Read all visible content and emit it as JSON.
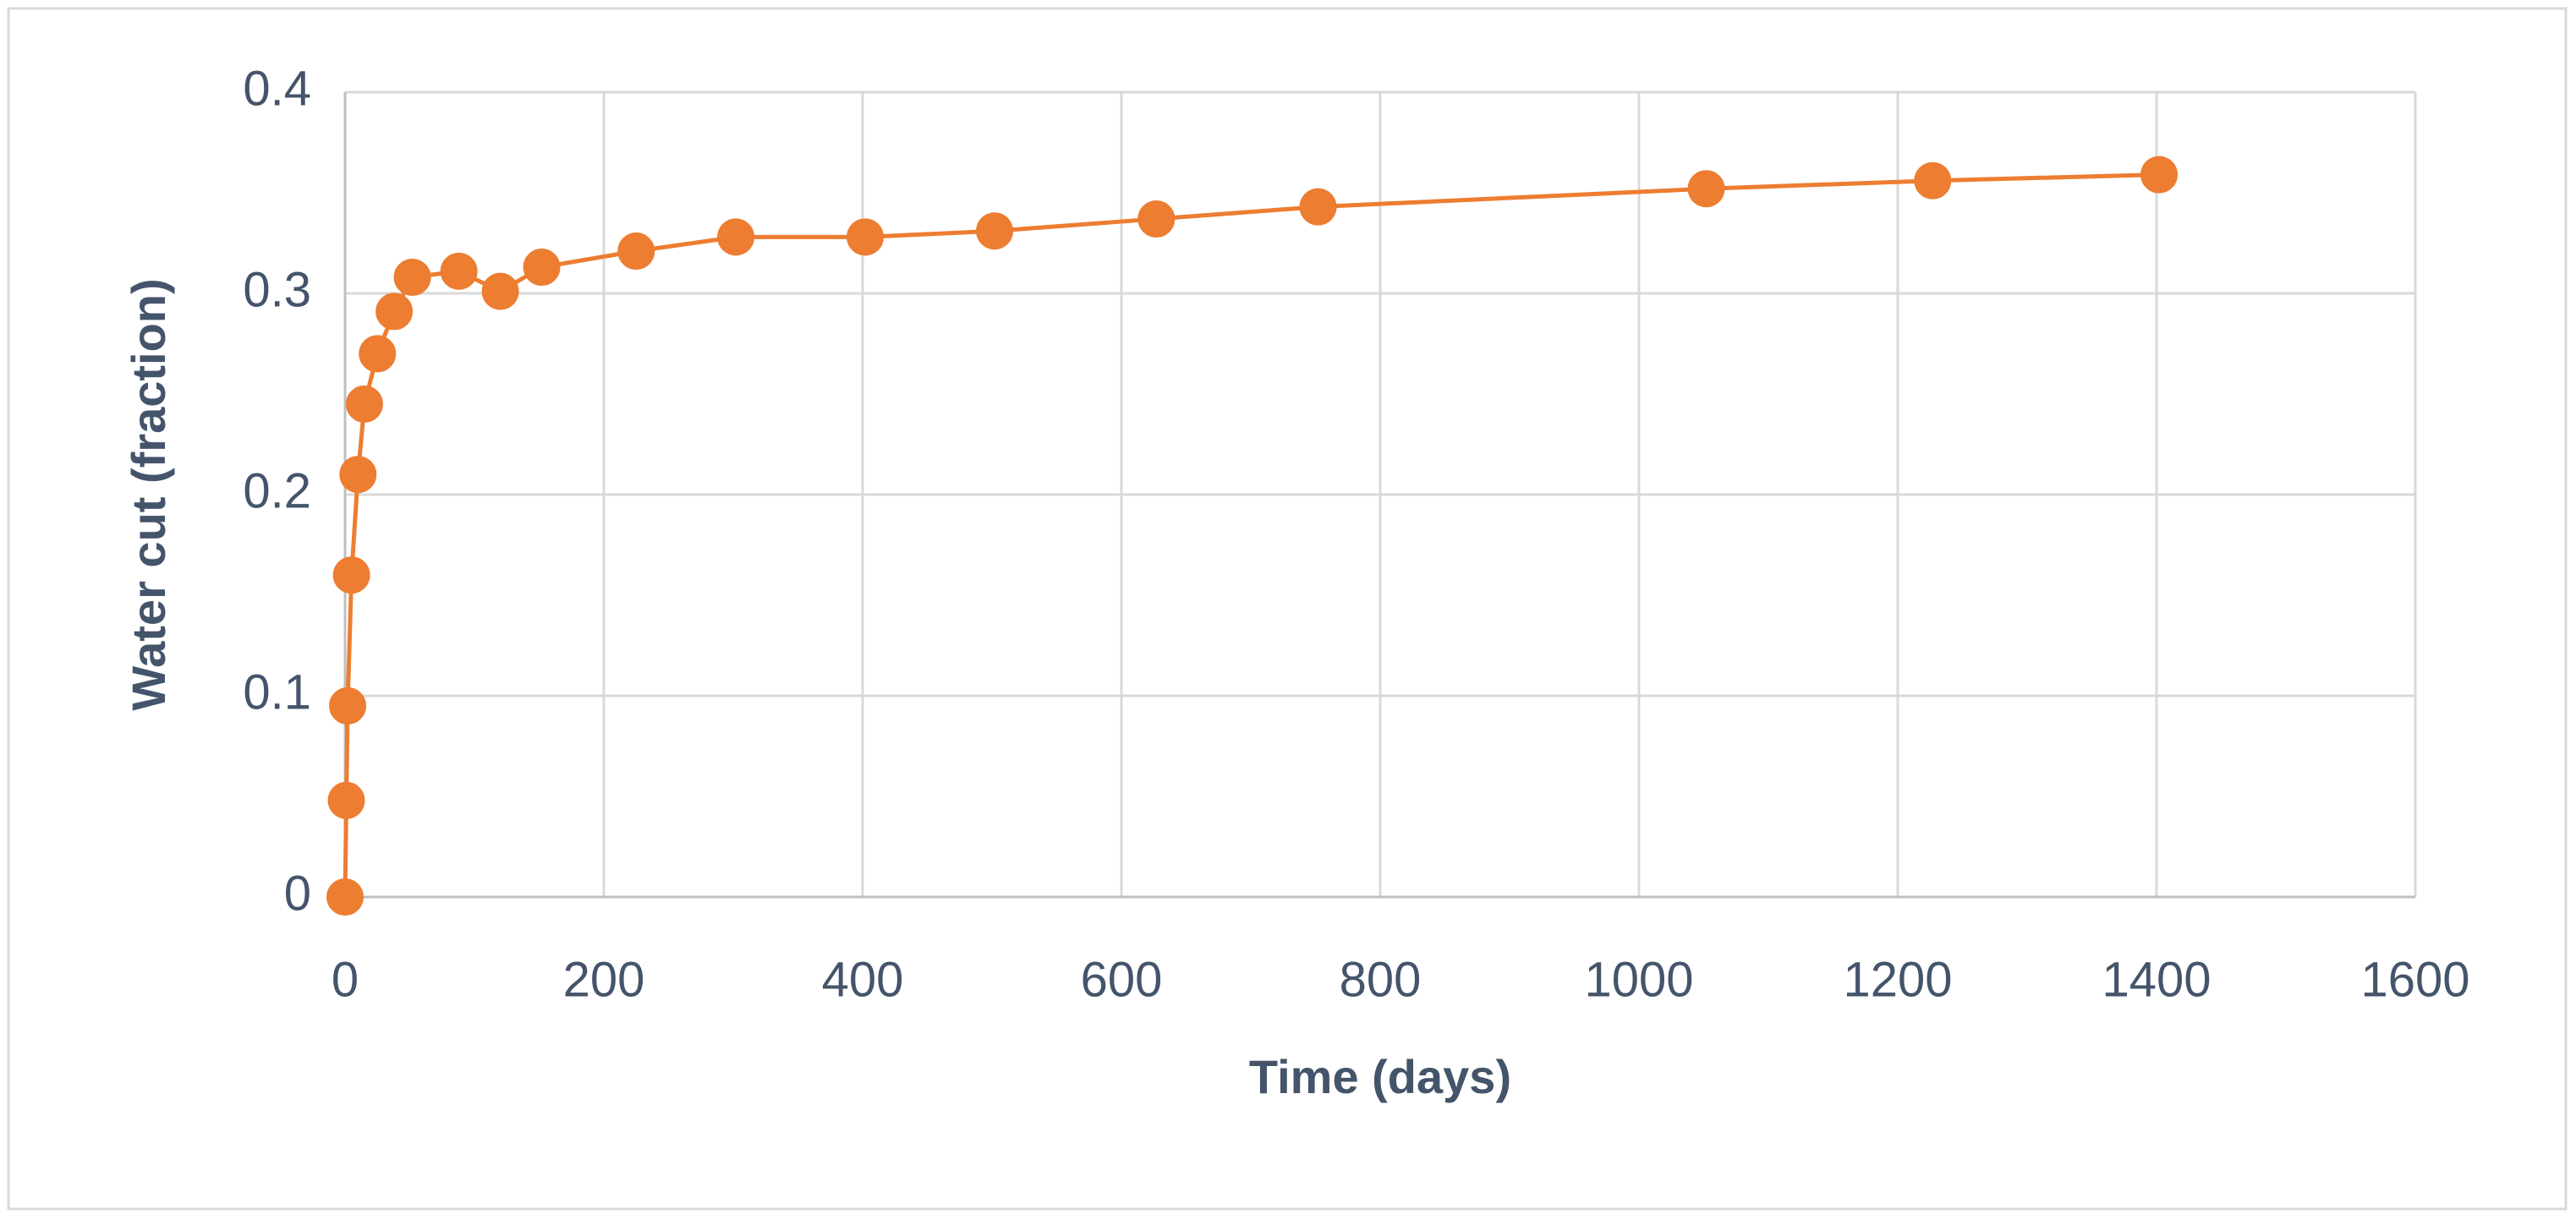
{
  "chart_data": {
    "type": "line",
    "x_label": "Time (days)",
    "y_label": "Water cut (fraction)",
    "x": [
      0,
      1,
      2,
      5,
      10,
      15,
      25,
      38,
      52,
      88,
      120,
      152,
      225,
      302,
      402,
      502,
      627,
      752,
      1052,
      1227,
      1402
    ],
    "series": [
      {
        "color": "#ed7d31",
        "values": [
          0,
          0.048,
          0.095,
          0.16,
          0.21,
          0.245,
          0.27,
          0.291,
          0.308,
          0.311,
          0.301,
          0.313,
          0.321,
          0.328,
          0.328,
          0.331,
          0.337,
          0.343,
          0.352,
          0.356,
          0.359
        ]
      }
    ],
    "xlim": [
      0,
      1600
    ],
    "xticks": [
      0,
      200,
      400,
      600,
      800,
      1000,
      1200,
      1400,
      1600
    ],
    "ylim": [
      0,
      0.4
    ],
    "yticks": [
      0,
      0.1,
      0.2,
      0.3,
      0.4
    ],
    "grid": true
  }
}
